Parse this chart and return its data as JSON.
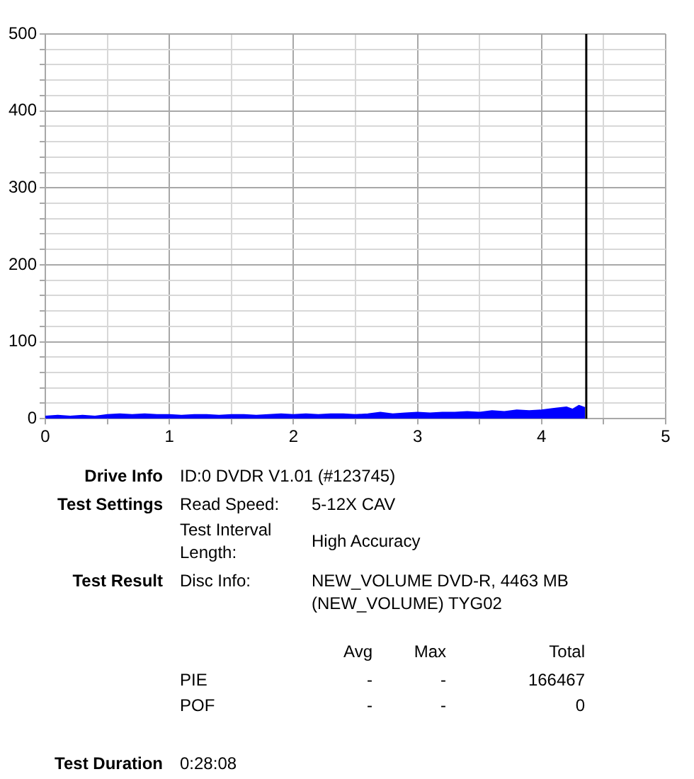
{
  "chart_data": {
    "type": "area",
    "x": [
      0,
      0.1,
      0.2,
      0.3,
      0.4,
      0.5,
      0.6,
      0.7,
      0.8,
      0.9,
      1.0,
      1.1,
      1.2,
      1.3,
      1.4,
      1.5,
      1.6,
      1.7,
      1.8,
      1.9,
      2.0,
      2.1,
      2.2,
      2.3,
      2.4,
      2.5,
      2.6,
      2.7,
      2.8,
      2.9,
      3.0,
      3.1,
      3.2,
      3.3,
      3.4,
      3.5,
      3.6,
      3.7,
      3.8,
      3.9,
      4.0,
      4.1,
      4.2,
      4.25,
      4.3,
      4.35
    ],
    "series": [
      {
        "color": "#0000ff",
        "values": [
          3,
          4,
          3,
          4,
          3,
          5,
          6,
          5,
          6,
          5,
          5,
          4,
          5,
          5,
          4,
          5,
          5,
          4,
          5,
          6,
          5,
          6,
          5,
          6,
          6,
          5,
          6,
          8,
          6,
          7,
          8,
          7,
          8,
          8,
          9,
          8,
          10,
          9,
          11,
          10,
          11,
          13,
          15,
          12,
          17,
          14
        ]
      }
    ],
    "xlim": [
      0,
      5
    ],
    "xticks": [
      0,
      {
        "value": 0.5,
        "label": null
      },
      1,
      {
        "value": 1.5,
        "label": null
      },
      2,
      {
        "value": 2.5,
        "label": null
      },
      3,
      {
        "value": 3.5,
        "label": null
      },
      4,
      {
        "value": 4.5,
        "label": null
      },
      5
    ],
    "ylim": [
      0,
      500
    ],
    "yticks": [
      0,
      {
        "value": 20,
        "label": null
      },
      {
        "value": 40,
        "label": null
      },
      {
        "value": 60,
        "label": null
      },
      {
        "value": 80,
        "label": null
      },
      100,
      {
        "value": 120,
        "label": null
      },
      {
        "value": 140,
        "label": null
      },
      {
        "value": 160,
        "label": null
      },
      {
        "value": 180,
        "label": null
      },
      200,
      {
        "value": 220,
        "label": null
      },
      {
        "value": 240,
        "label": null
      },
      {
        "value": 260,
        "label": null
      },
      {
        "value": 280,
        "label": null
      },
      300,
      {
        "value": 320,
        "label": null
      },
      {
        "value": 340,
        "label": null
      },
      {
        "value": 360,
        "label": null
      },
      {
        "value": 380,
        "label": null
      },
      400,
      {
        "value": 420,
        "label": null
      },
      {
        "value": 440,
        "label": null
      },
      {
        "value": 460,
        "label": null
      },
      {
        "value": 480,
        "label": null
      },
      500
    ],
    "grid": true,
    "legend": false,
    "marker": "none",
    "ref_lines": [
      {
        "axis": "x",
        "value": 4.36,
        "color": "#000000"
      }
    ],
    "annotations": [
      "Drive Info",
      "ID:0 DVDR V1.01 (#123745)",
      "Test Settings",
      "Read Speed:",
      "5-12X CAV",
      "Test Interval Length:",
      "High Accuracy",
      "Test Result",
      "Disc Info:",
      "NEW_VOLUME DVD-R, 4463 MB (NEW_VOLUME) TYG02",
      "Avg",
      "Max",
      "Total",
      "PIE",
      "-",
      "-",
      "166467",
      "POF",
      "-",
      "-",
      "0",
      "Test Duration",
      "0:28:08"
    ]
  }
}
